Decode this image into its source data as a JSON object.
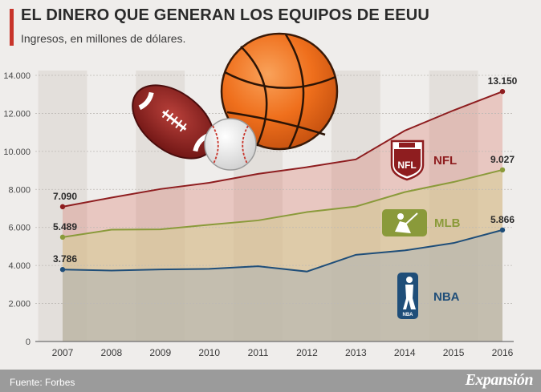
{
  "header": {
    "title": "EL DINERO QUE GENERAN LOS EQUIPOS DE EEUU",
    "subtitle": "Ingresos, en millones de dólares."
  },
  "footer": {
    "source": "Fuente: Forbes",
    "brand": "Expansión"
  },
  "colors": {
    "accent": "#c8342a",
    "nfl": "#8e1d1f",
    "mlb": "#8a9a3a",
    "nba": "#1f4e79",
    "footer_bg": "#9b9b9b",
    "column_band": "#e3dfdb"
  },
  "icons": [
    "football-icon",
    "basketball-icon",
    "baseball-icon",
    "nfl-logo-icon",
    "mlb-logo-icon",
    "nba-logo-icon"
  ],
  "chart_data": {
    "type": "area",
    "title": "EL DINERO QUE GENERAN LOS EQUIPOS DE EEUU",
    "subtitle": "Ingresos, en millones de dólares.",
    "xlabel": "",
    "ylabel": "",
    "x": [
      "2007",
      "2008",
      "2009",
      "2010",
      "2011",
      "2012",
      "2013",
      "2014",
      "2015",
      "2016"
    ],
    "ylim": [
      0,
      14000
    ],
    "y_ticks": [
      0,
      2000,
      4000,
      6000,
      8000,
      10000,
      12000,
      14000
    ],
    "y_tick_labels": [
      "0",
      "2.000",
      "4.000",
      "6.000",
      "8.000",
      "10.000",
      "12.000",
      "14.000"
    ],
    "series": [
      {
        "name": "NFL",
        "color": "#8e1d1f",
        "values": [
          7090,
          7570,
          8020,
          8350,
          8820,
          9170,
          9580,
          11090,
          12160,
          13150
        ],
        "first_label": "7.090",
        "last_label": "13.150"
      },
      {
        "name": "MLB",
        "color": "#8a9a3a",
        "values": [
          5489,
          5880,
          5900,
          6140,
          6370,
          6810,
          7100,
          7860,
          8390,
          9027
        ],
        "first_label": "5.489",
        "last_label": "9.027"
      },
      {
        "name": "NBA",
        "color": "#1f4e79",
        "values": [
          3786,
          3730,
          3790,
          3820,
          3960,
          3680,
          4560,
          4790,
          5180,
          5866
        ],
        "first_label": "3.786",
        "last_label": "5.866"
      }
    ],
    "grid": true
  }
}
